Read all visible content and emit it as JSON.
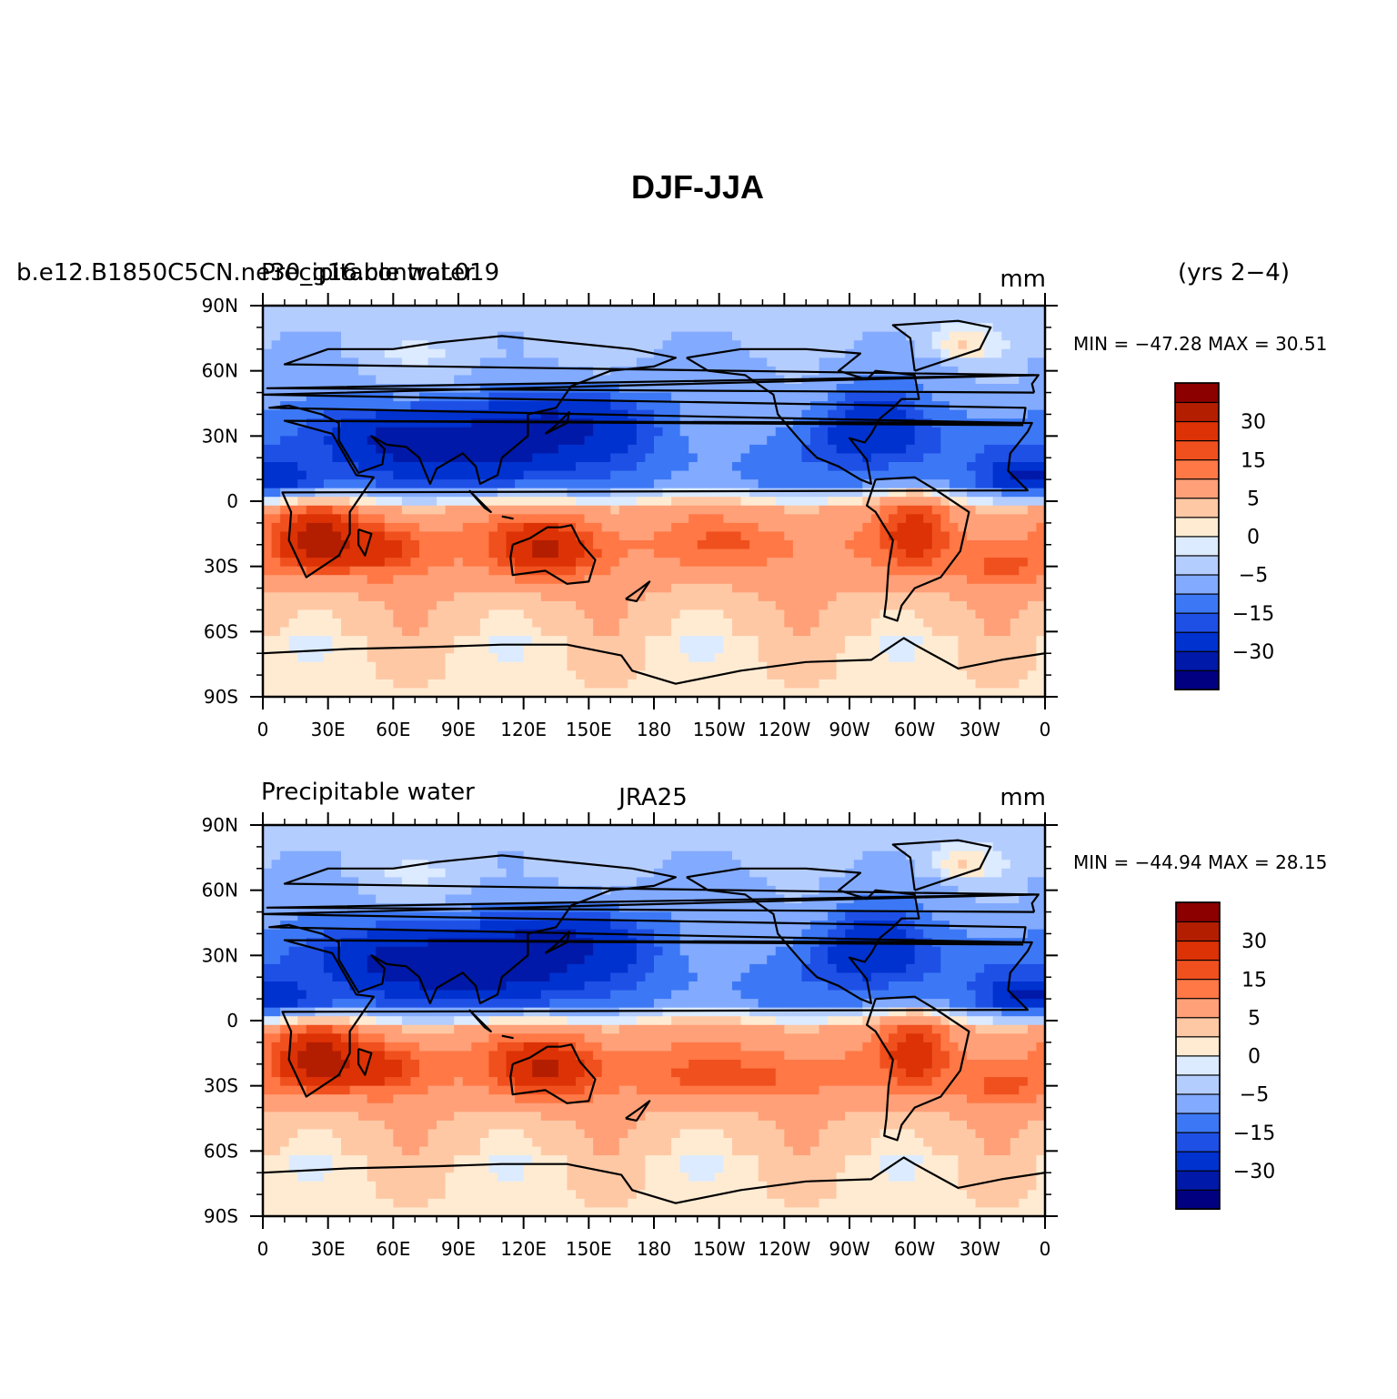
{
  "title": "DJF-JJA",
  "colorbar_colors": [
    "#000080",
    "#0019a8",
    "#0032d0",
    "#1e50e6",
    "#3c78f5",
    "#82aaff",
    "#b4cdff",
    "#dcebff",
    "#ffebd2",
    "#ffc8a5",
    "#ffa078",
    "#ff7846",
    "#f0501e",
    "#dc3205",
    "#b41e00",
    "#8c0000"
  ],
  "colorbar_labels": [
    "-30",
    "-15",
    "-5",
    "0",
    "5",
    "15",
    "30"
  ],
  "chart_data": [
    {
      "type": "heatmap",
      "left_title": "b.e12.B1850C5CN.ne30_g16.control.019",
      "left_title2": "Precipitable water",
      "center_title": "",
      "right_title": "mm",
      "side_title": "(yrs 2−4)",
      "stats": "MIN = −47.28 MAX =  30.51",
      "min": -47.28,
      "max": 30.51,
      "variable": "Precipitable water",
      "units": "mm",
      "xticks": [
        "0",
        "30E",
        "60E",
        "90E",
        "120E",
        "150E",
        "180",
        "150W",
        "120W",
        "90W",
        "60W",
        "30W",
        "0"
      ],
      "yticks": [
        "90N",
        "60N",
        "30N",
        "0",
        "30S",
        "60S",
        "90S"
      ],
      "xlim": [
        0,
        360
      ],
      "ylim": [
        -90,
        90
      ],
      "contour_levels": [
        -30,
        -20,
        -15,
        -10,
        -5,
        -2,
        0,
        2,
        5,
        10,
        15,
        20,
        30
      ]
    },
    {
      "type": "heatmap",
      "left_title": "Precipitable water",
      "left_title2": "",
      "center_title": "JRA25",
      "right_title": "mm",
      "side_title": "",
      "stats": "MIN = −44.94 MAX =  28.15",
      "min": -44.94,
      "max": 28.15,
      "variable": "Precipitable water",
      "units": "mm",
      "xticks": [
        "0",
        "30E",
        "60E",
        "90E",
        "120E",
        "150E",
        "180",
        "150W",
        "120W",
        "90W",
        "60W",
        "30W",
        "0"
      ],
      "yticks": [
        "90N",
        "60N",
        "30N",
        "0",
        "30S",
        "60S",
        "90S"
      ],
      "xlim": [
        0,
        360
      ],
      "ylim": [
        -90,
        90
      ],
      "contour_levels": [
        -30,
        -20,
        -15,
        -10,
        -5,
        -2,
        0,
        2,
        5,
        10,
        15,
        20,
        30
      ]
    }
  ]
}
